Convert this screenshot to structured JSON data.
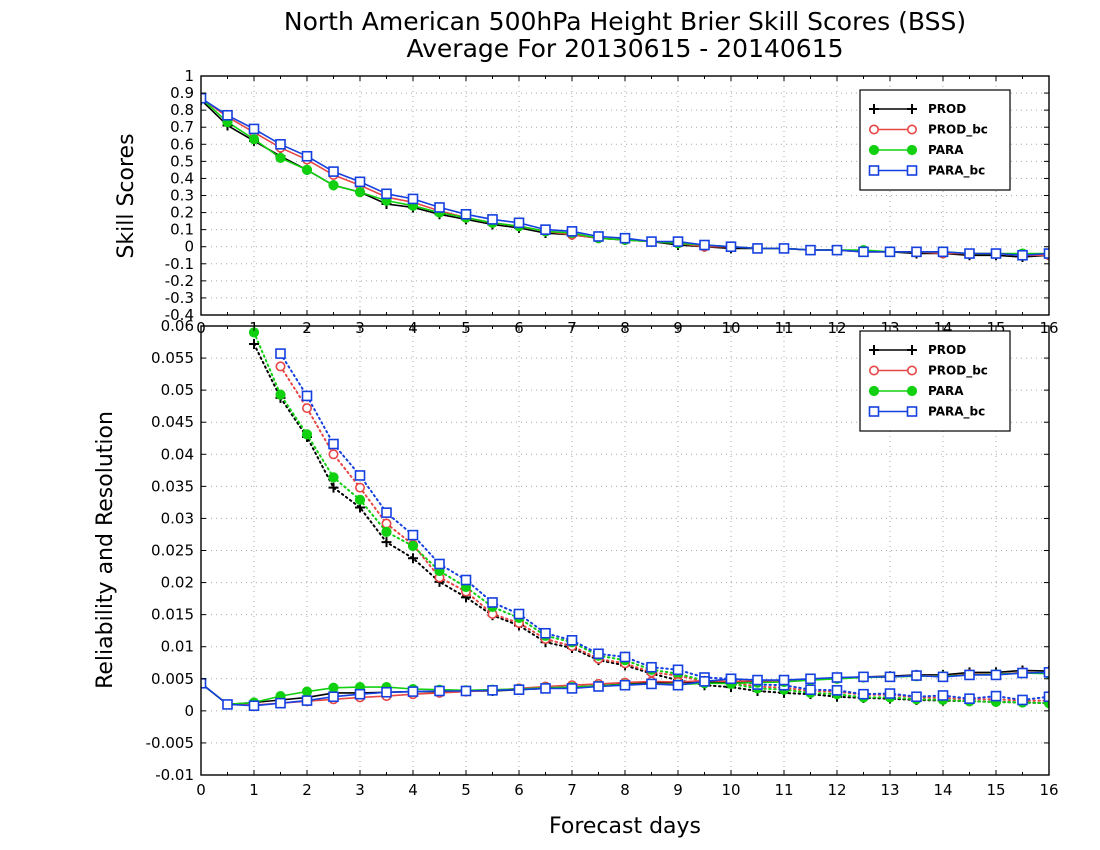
{
  "title_line1": "North American 500hPa Height Brier Skill Scores (BSS)",
  "title_line2": "Average For 20130615 - 20140615",
  "xlabel": "Forecast days",
  "colors": {
    "PROD": "#000000",
    "PROD_bc": "#e84545",
    "PARA": "#10d010",
    "PARA_bc": "#1540e0"
  },
  "chart_data": [
    {
      "type": "line",
      "ylabel": "Skill Scores",
      "xlim": [
        0,
        16
      ],
      "ylim": [
        -0.4,
        1
      ],
      "grid": true,
      "legend_position": "top-right",
      "x_tick_labels": [
        "0",
        "1",
        "2",
        "3",
        "4",
        "5",
        "6",
        "7",
        "8",
        "9",
        "10",
        "11",
        "12",
        "13",
        "14",
        "15",
        "16"
      ],
      "y_tick_labels": [
        "-0.4",
        "-0.3",
        "-0.2",
        "-0.1",
        "0",
        "0.1",
        "0.2",
        "0.3",
        "0.4",
        "0.5",
        "0.6",
        "0.7",
        "0.8",
        "0.9",
        "1"
      ],
      "x": [
        0,
        0.5,
        1,
        1.5,
        2,
        2.5,
        3,
        3.5,
        4,
        4.5,
        5,
        5.5,
        6,
        6.5,
        7,
        7.5,
        8,
        8.5,
        9,
        9.5,
        10,
        10.5,
        11,
        11.5,
        12,
        12.5,
        13,
        13.5,
        14,
        14.5,
        15,
        15.5,
        16
      ],
      "series": [
        {
          "name": "PROD",
          "marker": "plus",
          "values": [
            0.86,
            0.71,
            0.62,
            0.53,
            0.45,
            0.36,
            0.32,
            0.25,
            0.23,
            0.19,
            0.16,
            0.13,
            0.11,
            0.08,
            0.07,
            0.05,
            0.04,
            0.03,
            0.01,
            0.0,
            -0.01,
            -0.01,
            -0.01,
            -0.02,
            -0.02,
            -0.03,
            -0.03,
            -0.04,
            -0.04,
            -0.05,
            -0.05,
            -0.06,
            -0.05
          ]
        },
        {
          "name": "PROD_bc",
          "marker": "open-circle",
          "values": [
            0.87,
            0.76,
            0.67,
            0.58,
            0.51,
            0.42,
            0.36,
            0.29,
            0.26,
            0.21,
            0.17,
            0.14,
            0.12,
            0.09,
            0.07,
            0.05,
            0.04,
            0.03,
            0.02,
            0.0,
            0.0,
            -0.01,
            -0.01,
            -0.02,
            -0.02,
            -0.03,
            -0.03,
            -0.03,
            -0.04,
            -0.04,
            -0.04,
            -0.05,
            -0.05
          ]
        },
        {
          "name": "PARA",
          "marker": "filled-circle",
          "values": [
            0.87,
            0.73,
            0.63,
            0.52,
            0.45,
            0.36,
            0.32,
            0.27,
            0.24,
            0.2,
            0.17,
            0.14,
            0.12,
            0.09,
            0.08,
            0.05,
            0.04,
            0.03,
            0.02,
            0.01,
            0.0,
            -0.01,
            -0.01,
            -0.02,
            -0.02,
            -0.02,
            -0.03,
            -0.03,
            -0.03,
            -0.04,
            -0.04,
            -0.04,
            -0.04
          ]
        },
        {
          "name": "PARA_bc",
          "marker": "open-square",
          "values": [
            0.87,
            0.77,
            0.69,
            0.6,
            0.53,
            0.44,
            0.38,
            0.31,
            0.28,
            0.23,
            0.19,
            0.16,
            0.14,
            0.1,
            0.09,
            0.06,
            0.05,
            0.03,
            0.03,
            0.01,
            0.0,
            -0.01,
            -0.01,
            -0.02,
            -0.02,
            -0.03,
            -0.03,
            -0.03,
            -0.03,
            -0.04,
            -0.04,
            -0.05,
            -0.04
          ]
        }
      ]
    },
    {
      "type": "line",
      "ylabel": "Reliability and Resolution",
      "xlabel": "Forecast days",
      "xlim": [
        0,
        16
      ],
      "ylim": [
        -0.01,
        0.06
      ],
      "grid": true,
      "legend_position": "top-right",
      "x_tick_labels": [
        "0",
        "1",
        "2",
        "3",
        "4",
        "5",
        "6",
        "7",
        "8",
        "9",
        "10",
        "11",
        "12",
        "13",
        "14",
        "15",
        "16"
      ],
      "y_tick_labels": [
        "-0.01",
        "-0.005",
        "0",
        "0.005",
        "0.01",
        "0.015",
        "0.02",
        "0.025",
        "0.03",
        "0.035",
        "0.04",
        "0.045",
        "0.05",
        "0.055",
        "0.06"
      ],
      "x": [
        0,
        0.5,
        1,
        1.5,
        2,
        2.5,
        3,
        3.5,
        4,
        4.5,
        5,
        5.5,
        6,
        6.5,
        7,
        7.5,
        8,
        8.5,
        9,
        9.5,
        10,
        10.5,
        11,
        11.5,
        12,
        12.5,
        13,
        13.5,
        14,
        14.5,
        15,
        15.5,
        16
      ],
      "series": [
        {
          "name": "PROD",
          "group": "resolution",
          "linestyle": "dotted",
          "marker": "plus",
          "values": [
            null,
            null,
            0.0572,
            0.0488,
            0.0427,
            0.0348,
            0.0317,
            0.0263,
            0.0238,
            0.0201,
            0.0177,
            0.0149,
            0.0133,
            0.0107,
            0.0098,
            0.0079,
            0.0071,
            0.0058,
            0.0048,
            0.004,
            0.0037,
            0.0031,
            0.0028,
            0.0026,
            0.0022,
            0.002,
            0.0019,
            0.0017,
            0.0016,
            0.0015,
            0.0014,
            0.0013,
            0.0012
          ]
        },
        {
          "name": "PROD_bc",
          "group": "resolution",
          "linestyle": "dotted",
          "marker": "open-circle",
          "values": [
            null,
            null,
            null,
            0.0537,
            0.0472,
            0.04,
            0.0348,
            0.0292,
            0.0259,
            0.0208,
            0.0186,
            0.0151,
            0.0137,
            0.0112,
            0.0101,
            0.0081,
            0.0074,
            0.006,
            0.0055,
            0.0046,
            0.0044,
            0.0038,
            0.0036,
            0.0031,
            0.003,
            0.0025,
            0.0025,
            0.0021,
            0.002,
            0.0018,
            0.0018,
            0.0016,
            0.0016
          ]
        },
        {
          "name": "PARA",
          "group": "resolution",
          "linestyle": "dotted",
          "marker": "filled-circle",
          "values": [
            null,
            null,
            0.059,
            0.0493,
            0.0431,
            0.0364,
            0.0329,
            0.0279,
            0.0257,
            0.0218,
            0.0193,
            0.0162,
            0.0145,
            0.0117,
            0.0107,
            0.0086,
            0.0079,
            0.0064,
            0.0058,
            0.0047,
            0.0042,
            0.0035,
            0.0033,
            0.0028,
            0.0026,
            0.0021,
            0.0021,
            0.0018,
            0.0017,
            0.0015,
            0.0014,
            0.0013,
            0.0012
          ]
        },
        {
          "name": "PARA_bc",
          "group": "resolution",
          "linestyle": "dotted",
          "marker": "open-square",
          "values": [
            null,
            null,
            null,
            0.0557,
            0.0491,
            0.0416,
            0.0367,
            0.0309,
            0.0274,
            0.0229,
            0.0204,
            0.0169,
            0.0151,
            0.0121,
            0.011,
            0.0089,
            0.0084,
            0.0068,
            0.0064,
            0.0052,
            0.005,
            0.0041,
            0.004,
            0.0033,
            0.0032,
            0.0026,
            0.0027,
            0.0022,
            0.0024,
            0.0019,
            0.0023,
            0.0017,
            0.0022
          ]
        },
        {
          "name": "PROD",
          "group": "reliability",
          "linestyle": "solid",
          "marker": "plus",
          "values": [
            0.0043,
            0.001,
            0.0013,
            0.0017,
            0.0021,
            0.0028,
            0.0028,
            0.0029,
            0.003,
            0.003,
            0.0031,
            0.0031,
            0.0033,
            0.0035,
            0.0037,
            0.0039,
            0.0042,
            0.0044,
            0.0044,
            0.0045,
            0.0044,
            0.0045,
            0.0047,
            0.0049,
            0.0051,
            0.0053,
            0.0054,
            0.0056,
            0.0056,
            0.006,
            0.006,
            0.0063,
            0.0062
          ]
        },
        {
          "name": "PROD_bc",
          "group": "reliability",
          "linestyle": "solid",
          "marker": "open-circle",
          "values": [
            0.0043,
            0.001,
            0.0009,
            0.0012,
            0.0015,
            0.0018,
            0.0021,
            0.0023,
            0.0026,
            0.0028,
            0.003,
            0.0032,
            0.0035,
            0.0038,
            0.004,
            0.0042,
            0.0044,
            0.0046,
            0.0045,
            0.0047,
            0.0046,
            0.0047,
            0.0047,
            0.0049,
            0.0051,
            0.0053,
            0.0053,
            0.0055,
            0.0054,
            0.0057,
            0.0057,
            0.006,
            0.0059
          ]
        },
        {
          "name": "PARA",
          "group": "reliability",
          "linestyle": "solid",
          "marker": "filled-circle",
          "values": [
            0.0043,
            0.001,
            0.0013,
            0.0023,
            0.003,
            0.0036,
            0.0037,
            0.0037,
            0.0034,
            0.0033,
            0.0032,
            0.0033,
            0.0034,
            0.0036,
            0.0037,
            0.0039,
            0.0041,
            0.0042,
            0.0041,
            0.0043,
            0.0043,
            0.0044,
            0.0045,
            0.0048,
            0.005,
            0.0052,
            0.0053,
            0.0054,
            0.0054,
            0.0056,
            0.0057,
            0.0059,
            0.0058
          ]
        },
        {
          "name": "PARA_bc",
          "group": "reliability",
          "linestyle": "solid",
          "marker": "open-square",
          "values": [
            0.0043,
            0.001,
            0.0008,
            0.0012,
            0.0016,
            0.0022,
            0.0026,
            0.0029,
            0.003,
            0.0031,
            0.0031,
            0.0032,
            0.0033,
            0.0035,
            0.0035,
            0.0038,
            0.004,
            0.0042,
            0.004,
            0.0046,
            0.005,
            0.0048,
            0.0048,
            0.005,
            0.0052,
            0.0053,
            0.0053,
            0.0055,
            0.0053,
            0.0056,
            0.0056,
            0.0059,
            0.006
          ]
        }
      ]
    }
  ]
}
